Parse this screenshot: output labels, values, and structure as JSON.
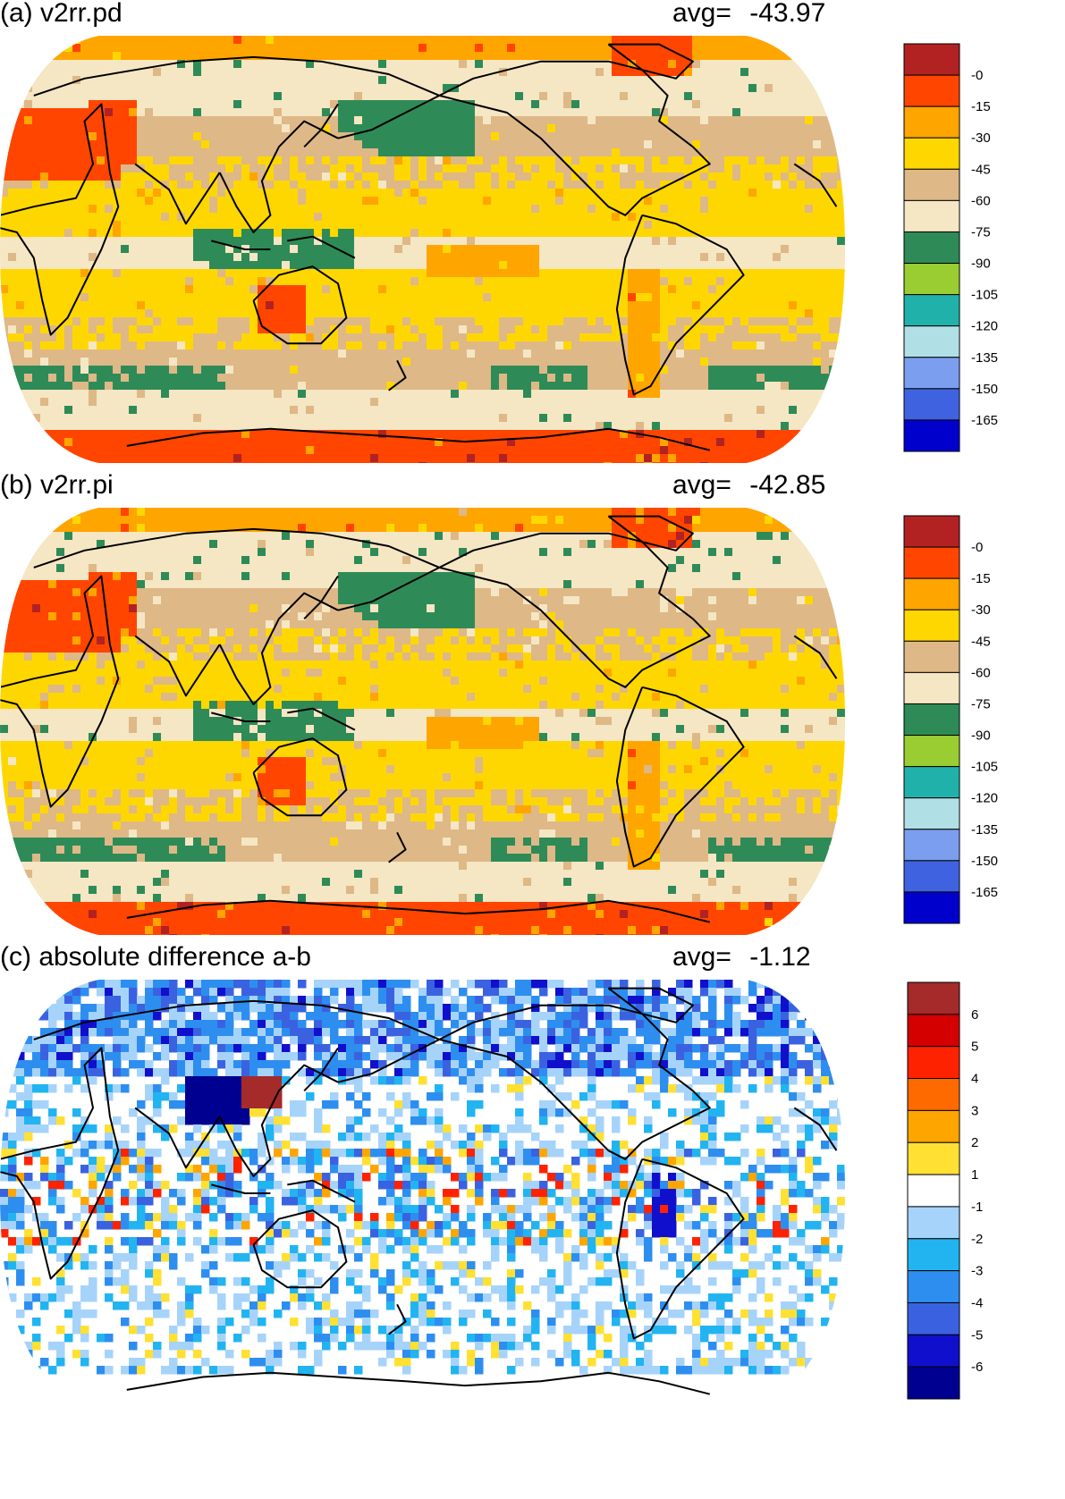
{
  "panels": [
    {
      "id": "a",
      "title": "(a) v2rr.pd",
      "avg_label": "avg=",
      "avg_value": "-43.97",
      "colorbar": {
        "labels": [
          "-0",
          "-15",
          "-30",
          "-45",
          "-60",
          "-75",
          "-90",
          "-105",
          "-120",
          "-135",
          "-150",
          "-165"
        ],
        "colors": [
          "#b22222",
          "#ff4500",
          "#ffa500",
          "#ffd700",
          "#deb887",
          "#f5e6c4",
          "#2e8b57",
          "#9acd32",
          "#20b2aa",
          "#b0e0e6",
          "#7b9fee",
          "#3f63e0",
          "#0000cd"
        ]
      }
    },
    {
      "id": "b",
      "title": "(b) v2rr.pi",
      "avg_label": "avg=",
      "avg_value": "-42.85",
      "colorbar": {
        "labels": [
          "-0",
          "-15",
          "-30",
          "-45",
          "-60",
          "-75",
          "-90",
          "-105",
          "-120",
          "-135",
          "-150",
          "-165"
        ],
        "colors": [
          "#b22222",
          "#ff4500",
          "#ffa500",
          "#ffd700",
          "#deb887",
          "#f5e6c4",
          "#2e8b57",
          "#9acd32",
          "#20b2aa",
          "#b0e0e6",
          "#7b9fee",
          "#3f63e0",
          "#0000cd"
        ]
      }
    },
    {
      "id": "c",
      "title": "(c) absolute difference a-b",
      "avg_label": "avg=",
      "avg_value": "-1.12",
      "colorbar": {
        "labels": [
          "6",
          "5",
          "4",
          "3",
          "2",
          "1",
          "-1",
          "-2",
          "-3",
          "-4",
          "-5",
          "-6"
        ],
        "colors": [
          "#a52a2a",
          "#d40000",
          "#ff2200",
          "#ff6a00",
          "#ffa500",
          "#ffe033",
          "#ffffff",
          "#a6d3fa",
          "#22b4f0",
          "#2d8ef0",
          "#3a62e0",
          "#1010cc",
          "#000090"
        ]
      }
    }
  ]
}
